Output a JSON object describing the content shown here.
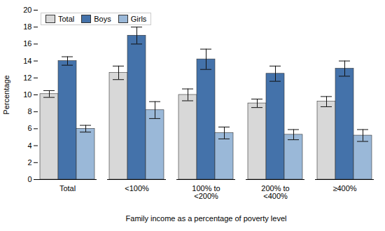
{
  "chart_data": {
    "type": "bar",
    "xlabel": "Family income as a percentage of poverty level",
    "ylabel": "Percentage",
    "categories": [
      "Total",
      "<100%",
      "100% to\n<200%",
      "200% to\n<400%",
      "≥400%"
    ],
    "series": [
      {
        "name": "Total",
        "color": "#d8d8d8",
        "values": [
          10.1,
          12.6,
          10.0,
          9.0,
          9.2
        ],
        "errors": [
          0.4,
          0.8,
          0.7,
          0.5,
          0.6
        ]
      },
      {
        "name": "Boys",
        "color": "#4472aa",
        "values": [
          14.0,
          17.0,
          14.2,
          12.5,
          13.1
        ],
        "errors": [
          0.5,
          1.0,
          1.2,
          0.9,
          0.9
        ]
      },
      {
        "name": "Girls",
        "color": "#9ab8d8",
        "values": [
          6.0,
          8.2,
          5.5,
          5.3,
          5.2
        ],
        "errors": [
          0.4,
          1.0,
          0.7,
          0.6,
          0.7
        ]
      }
    ],
    "ylim": [
      0,
      20
    ],
    "yticks": [
      0,
      2,
      4,
      6,
      8,
      10,
      12,
      14,
      16,
      18,
      20
    ],
    "grid": false,
    "legend": "upper left"
  }
}
